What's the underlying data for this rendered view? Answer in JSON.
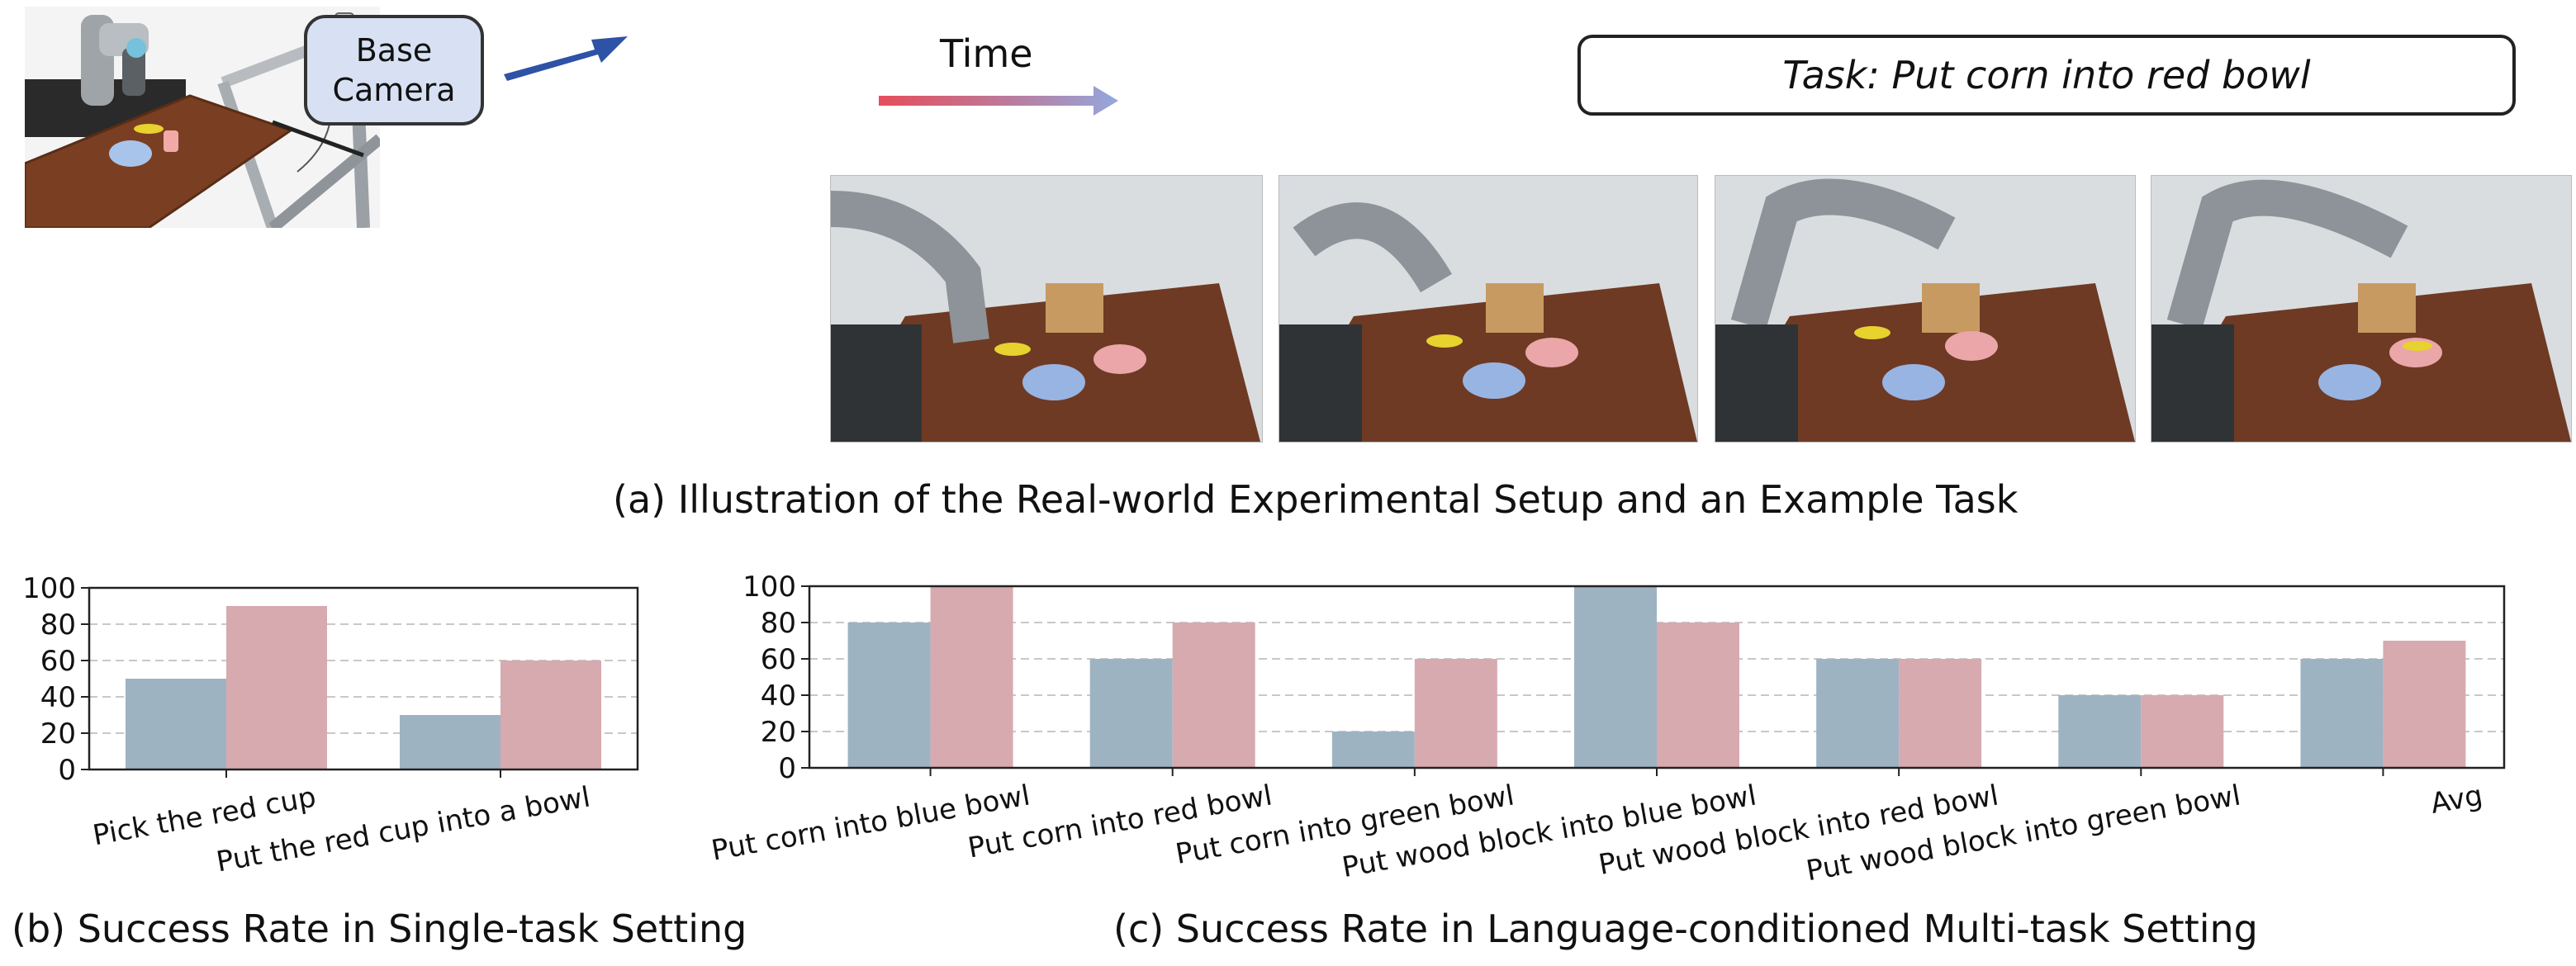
{
  "panel_a": {
    "camera_label_line1": "Base",
    "camera_label_line2": "Camera",
    "time_label": "Time",
    "task_label": "Task: Put corn into red bowl",
    "caption": "(a) Illustration of the Real-world Experimental Setup and an Example Task"
  },
  "panel_b": {
    "caption": "(b) Success Rate in Single-task Setting"
  },
  "panel_c": {
    "caption": "(c) Success Rate in Language-conditioned Multi-task Setting"
  },
  "colors": {
    "series_a": "#9eb3c2",
    "series_b": "#d7aab0",
    "arrow": "#2e52a6",
    "time_start": "#e0303f",
    "time_end": "#93a8de"
  },
  "chart_data": [
    {
      "type": "bar",
      "categories": [
        "Pick the red cup",
        "Put the red cup into a bowl"
      ],
      "series": [
        {
          "values": [
            50,
            30
          ],
          "color": "#9eb3c2"
        },
        {
          "values": [
            90,
            60
          ],
          "color": "#d7aab0"
        }
      ],
      "yticks": [
        "0",
        "20",
        "40",
        "60",
        "80",
        "100"
      ],
      "ylim": [
        0,
        100
      ],
      "grid": "y-dashed"
    },
    {
      "type": "bar",
      "categories": [
        "Put corn into blue bowl",
        "Put corn into red bowl",
        "Put corn into green bowl",
        "Put wood block into blue bowl",
        "Put wood block into red bowl",
        "Put wood block into green bowl",
        "Avg"
      ],
      "series": [
        {
          "values": [
            80,
            60,
            20,
            100,
            60,
            40,
            60
          ],
          "color": "#9eb3c2"
        },
        {
          "values": [
            100,
            80,
            60,
            80,
            60,
            40,
            70
          ],
          "color": "#d7aab0"
        }
      ],
      "yticks": [
        "0",
        "20",
        "40",
        "60",
        "80",
        "100"
      ],
      "ylim": [
        0,
        100
      ],
      "grid": "y-dashed"
    }
  ]
}
